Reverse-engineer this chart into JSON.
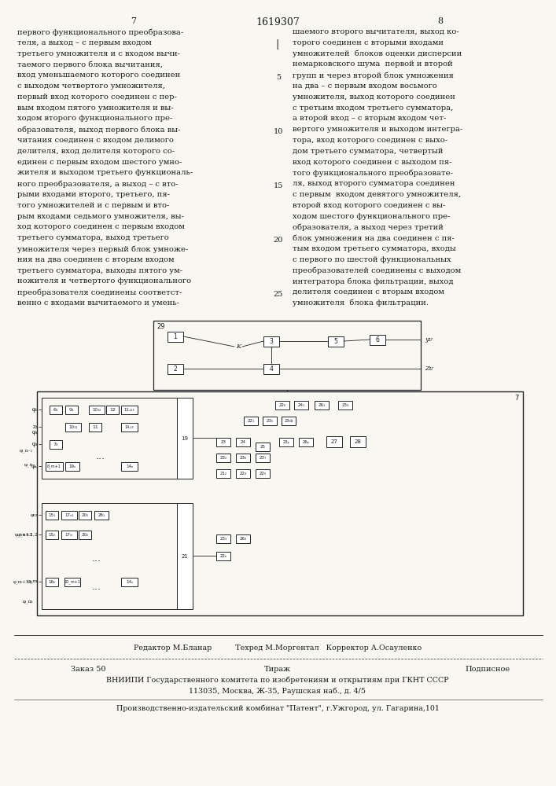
{
  "page_num_left": "7",
  "page_num_center": "1619307",
  "page_num_right": "8",
  "left_text": [
    "первого функционального преобразова-",
    "теля, а выход – с первым входом",
    "третьего умножителя и с входом вычи-",
    "таемого первого блока вычитания,",
    "вход уменьшаемого которого соединен",
    "с выходом четвертого умножителя,",
    "первый вход которого соединен с пер-",
    "вым входом пятого умножителя и вы-",
    "ходом второго функционального пре-",
    "образователя, выход первого блока вы-",
    "читания соединен с входом делимого",
    "делителя, вход делителя которого со-",
    "единен с первым входом шестого умно-",
    "жителя и выходом третьего функциональ-",
    "ного преобразователя, а выход – с вто-",
    "рыми входами второго, третьего, пя-",
    "того умножителей и с первым и вто-",
    "рым входами седьмого умножителя, вы-",
    "ход которого соединен с первым входом",
    "третьего сумматора, выход третьего",
    "умножителя через первый блок умноже-",
    "ния на два соединен с вторым входом",
    "третьего сумматора, выходы пятого ум-",
    "ножителя и четвертого функционального",
    "преобразователя соединены соответст-",
    "венно с входами вычитаемого и умень-"
  ],
  "right_text": [
    "шаемого второго вычитателя, выход ко-",
    "торого соединен с вторыми входами",
    "умножителей  блоков оценки дисперсии",
    "немарковского шума  первой и второй",
    "групп и через второй блок умножения",
    "на два – с первым входом восьмого",
    "умножителя, выход которого соединен",
    "с третьим входом третьего сумматора,",
    "а второй вход – с вторым входом чет-",
    "вертого умножителя и выходом интегра-",
    "тора, вход которого соединен с выхо-",
    "дом третьего сумматора, четвертый",
    "вход которого соединен с выходом пя-",
    "того функционального преобразовате-",
    "ля, выход второго сумматора соединен",
    "с первым  входом девятого умножителя,",
    "второй вход которого соединен с вы-",
    "ходом шестого функционального пре-",
    "образователя, а выход через третий",
    "блок умножения на два соединен с пя-",
    "тым входом третьего сумматора, входы",
    "с первого по шестой функциональных",
    "преобразователей соединены с выходом",
    "интегратора блока фильтрации, выход",
    "делителя соединен с вторым входом",
    "умножителя  блока фильтрации."
  ],
  "line_numbers": [
    [
      "5",
      4
    ],
    [
      "10",
      9
    ],
    [
      "15",
      14
    ],
    [
      "20",
      19
    ],
    [
      "25",
      24
    ]
  ],
  "editor_line": "Редактор М.Бланар          Техред М.Моргентал   Корректор А.Осауленко",
  "order_text": "Заказ 50",
  "tirazh_text": "Тираж",
  "podpisnoe_text": "Подписное",
  "institute_line": "ВНИИПИ Государственного комитета по изобретениям и открытиям при ГКНТ СССР",
  "address_line": "113035, Москва, Ж-35, Раушская наб., д. 4/5",
  "publisher_line": "Производственно-издательский комбинат \"Патент\", г.Ужгород, ул. Гагарина,101",
  "bg_color": "#f8f7f2",
  "text_color": "#1a1a1a",
  "line_color": "#222222"
}
